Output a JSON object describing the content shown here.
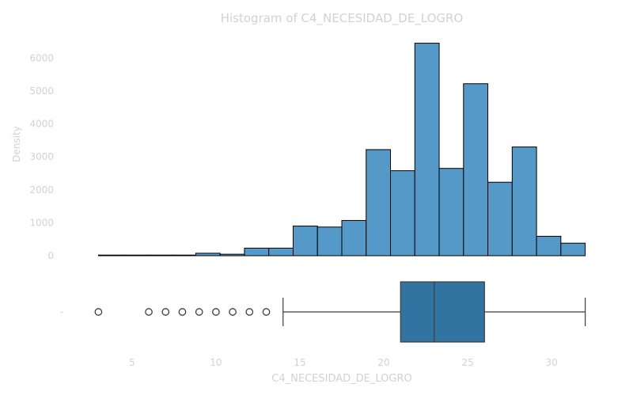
{
  "chart_data": [
    {
      "type": "bar",
      "title": "Histogram of C4_NECESIDAD_DE_LOGRO",
      "ylabel": "Density",
      "xlim": [
        1.85,
        33.15
      ],
      "ylim": [
        0,
        6800
      ],
      "y_ticks": [
        0,
        1000,
        2000,
        3000,
        4000,
        5000,
        6000
      ],
      "bin_edges": [
        3.0,
        4.45,
        5.9,
        7.35,
        8.8,
        10.25,
        11.7,
        13.15,
        14.6,
        16.05,
        17.5,
        18.95,
        20.4,
        21.85,
        23.3,
        24.75,
        26.2,
        27.65,
        29.1,
        30.55,
        32.0
      ],
      "values": [
        5,
        0,
        10,
        15,
        75,
        45,
        230,
        230,
        900,
        870,
        1070,
        3220,
        2580,
        6450,
        2650,
        5220,
        2230,
        3300,
        590,
        380
      ],
      "color": "#5599c9",
      "edge_color": "#000000",
      "grid": false
    },
    {
      "type": "boxplot",
      "xlabel": "C4_NECESIDAD_DE_LOGRO",
      "x_ticks": [
        5,
        10,
        15,
        20,
        25,
        30
      ],
      "y_tick_label": "-",
      "whisker_low": 14,
      "q1": 21,
      "median": 23,
      "q3": 26,
      "whisker_high": 32,
      "outliers": [
        3,
        6,
        7,
        8,
        9,
        10,
        11,
        12,
        13
      ],
      "color": "#3274a1"
    }
  ]
}
